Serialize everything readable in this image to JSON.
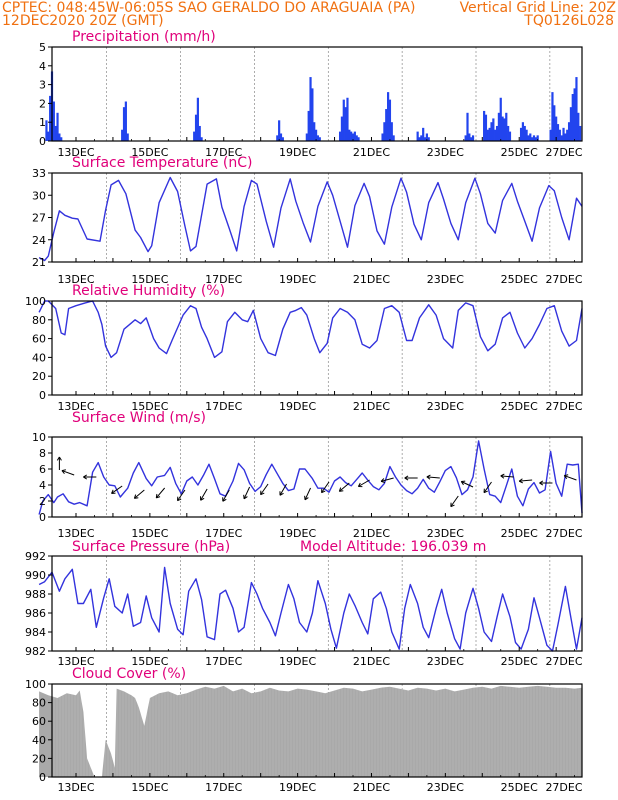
{
  "header": {
    "station_line": "CPTEC:   048:45W-06:05S  SAO GERALDO DO ARAGUAIA (PA)",
    "date_line": "12DEC2020 20Z (GMT)",
    "grid_note": "Vertical Grid Line: 20Z",
    "code": "TQ0126L028"
  },
  "x_tick_labels": [
    "13DEC",
    "15DEC",
    "17DEC",
    "19DEC",
    "21DEC",
    "23DEC",
    "25DEC",
    "27DEC"
  ],
  "colors": {
    "line": "#3333dd",
    "bar": "#2244ee",
    "cloud": "#a9a9a9",
    "title": "#e0007a",
    "header": "#f07010"
  },
  "chart_data": [
    {
      "type": "bar",
      "title": "Precipitation (mm/h)",
      "ylim": [
        0,
        5
      ],
      "yticks": [
        0,
        1,
        2,
        3,
        4,
        5
      ],
      "x_unit": "days since 12DEC2020 00Z",
      "x": [
        0.2,
        0.25,
        0.3,
        0.35,
        0.4,
        0.45,
        0.5,
        0.55,
        0.6,
        2.25,
        2.3,
        2.35,
        2.4,
        4.2,
        4.25,
        4.3,
        4.35,
        4.4,
        6.45,
        6.5,
        6.55,
        6.6,
        7.25,
        7.3,
        7.35,
        7.4,
        7.45,
        7.5,
        7.55,
        7.6,
        8.15,
        8.2,
        8.25,
        8.3,
        8.35,
        8.4,
        8.45,
        8.5,
        8.55,
        8.6,
        8.65,
        9.3,
        9.35,
        9.4,
        9.45,
        9.5,
        9.55,
        9.6,
        10.25,
        10.3,
        10.35,
        10.4,
        10.45,
        10.5,
        10.55,
        11.55,
        11.6,
        11.65,
        11.7,
        11.75,
        12.05,
        12.1,
        12.15,
        12.2,
        12.25,
        12.3,
        12.35,
        12.4,
        12.45,
        12.5,
        12.55,
        12.6,
        12.65,
        12.7,
        12.75,
        13.05,
        13.1,
        13.15,
        13.2,
        13.25,
        13.3,
        13.35,
        13.4,
        13.45,
        13.5,
        13.85,
        13.9,
        13.95,
        14.0,
        14.05,
        14.1,
        14.15,
        14.2,
        14.25,
        14.3,
        14.35,
        14.4,
        14.45,
        14.5,
        14.55,
        14.6,
        14.65
      ],
      "values": [
        1.1,
        0.5,
        2.4,
        3.7,
        2.1,
        0.8,
        1.5,
        0.4,
        0.2,
        0.6,
        1.8,
        2.1,
        0.4,
        0.5,
        1.4,
        2.3,
        0.8,
        0.2,
        0.3,
        1.1,
        0.4,
        0.2,
        0.4,
        1.6,
        3.4,
        2.8,
        1.0,
        0.6,
        0.3,
        0.2,
        0.5,
        1.3,
        2.2,
        1.8,
        2.3,
        0.6,
        0.5,
        0.4,
        0.5,
        0.3,
        0.2,
        0.4,
        1.0,
        1.7,
        2.6,
        2.2,
        1.0,
        0.3,
        0.5,
        0.2,
        0.3,
        0.7,
        0.2,
        0.4,
        0.2,
        0.3,
        1.5,
        0.4,
        0.2,
        0.3,
        1.6,
        1.4,
        0.6,
        0.7,
        1.0,
        1.2,
        0.6,
        0.8,
        1.5,
        2.3,
        1.3,
        1.2,
        1.5,
        0.8,
        0.5,
        0.7,
        1.0,
        0.8,
        0.6,
        0.3,
        0.4,
        0.2,
        0.3,
        0.2,
        0.3,
        0.6,
        2.6,
        1.9,
        1.3,
        0.9,
        0.6,
        0.3,
        0.7,
        0.4,
        0.6,
        1.0,
        1.8,
        2.5,
        2.8,
        3.4,
        1.5,
        0.8
      ]
    },
    {
      "type": "line",
      "title": "Surface Temperature (nC)",
      "ylim": [
        21,
        33
      ],
      "yticks": [
        21,
        24,
        27,
        30,
        33
      ],
      "x_unit": "days since 12DEC2020 00Z",
      "x": [
        0.0,
        0.15,
        0.25,
        0.4,
        0.55,
        0.7,
        0.9,
        1.05,
        1.3,
        1.65,
        1.8,
        1.95,
        2.15,
        2.35,
        2.6,
        2.75,
        2.95,
        3.05,
        3.25,
        3.55,
        3.75,
        3.95,
        4.1,
        4.25,
        4.55,
        4.8,
        4.95,
        5.15,
        5.35,
        5.55,
        5.75,
        5.9,
        6.15,
        6.35,
        6.55,
        6.8,
        6.95,
        7.15,
        7.35,
        7.55,
        7.8,
        7.95,
        8.15,
        8.35,
        8.55,
        8.8,
        8.95,
        9.15,
        9.35,
        9.55,
        9.8,
        9.95,
        10.15,
        10.35,
        10.55,
        10.8,
        10.95,
        11.15,
        11.35,
        11.55,
        11.8,
        11.95,
        12.15,
        12.35,
        12.55,
        12.8,
        12.95,
        13.15,
        13.35,
        13.55,
        13.8,
        13.95,
        14.15,
        14.35,
        14.55,
        14.7
      ],
      "values": [
        21.6,
        21.2,
        21.8,
        25.0,
        27.9,
        27.3,
        26.9,
        26.8,
        24.1,
        23.8,
        28.0,
        31.4,
        32.0,
        30.2,
        25.3,
        24.3,
        22.4,
        23.2,
        29.0,
        32.4,
        30.5,
        25.8,
        22.5,
        23.1,
        31.5,
        32.2,
        28.4,
        25.5,
        22.5,
        28.5,
        32.0,
        31.5,
        26.5,
        23.0,
        28.3,
        32.2,
        29.2,
        26.3,
        23.7,
        28.5,
        31.8,
        30.0,
        26.5,
        23.0,
        28.6,
        31.6,
        29.8,
        25.2,
        23.4,
        28.4,
        32.3,
        30.4,
        26.1,
        24.0,
        29.0,
        31.7,
        29.5,
        26.2,
        24.0,
        29.0,
        32.3,
        30.2,
        26.2,
        24.9,
        29.3,
        31.6,
        29.2,
        26.5,
        23.8,
        28.3,
        31.3,
        30.6,
        27.0,
        24.0,
        29.6,
        28.5
      ]
    },
    {
      "type": "line",
      "title": "Relative Humidity (%)",
      "ylim": [
        0,
        100
      ],
      "yticks": [
        0,
        20,
        40,
        60,
        80,
        100
      ],
      "x_unit": "days since 12DEC2020 00Z",
      "x": [
        0.0,
        0.15,
        0.25,
        0.45,
        0.6,
        0.7,
        0.8,
        1.0,
        1.25,
        1.45,
        1.6,
        1.7,
        1.8,
        1.95,
        2.1,
        2.3,
        2.6,
        2.75,
        2.9,
        3.1,
        3.25,
        3.45,
        3.6,
        3.9,
        4.1,
        4.25,
        4.4,
        4.55,
        4.75,
        4.95,
        5.1,
        5.3,
        5.5,
        5.65,
        5.8,
        6.0,
        6.2,
        6.4,
        6.6,
        6.8,
        6.95,
        7.1,
        7.25,
        7.45,
        7.6,
        7.8,
        7.95,
        8.15,
        8.35,
        8.55,
        8.75,
        8.95,
        9.15,
        9.35,
        9.55,
        9.75,
        9.95,
        10.1,
        10.3,
        10.55,
        10.75,
        10.95,
        11.2,
        11.35,
        11.55,
        11.75,
        11.95,
        12.15,
        12.35,
        12.55,
        12.75,
        12.95,
        13.15,
        13.35,
        13.55,
        13.75,
        13.95,
        14.15,
        14.35,
        14.55,
        14.7
      ],
      "values": [
        88,
        100,
        100,
        92,
        66,
        64,
        92,
        95,
        98,
        100,
        88,
        75,
        52,
        40,
        45,
        70,
        80,
        76,
        82,
        60,
        50,
        44,
        58,
        85,
        95,
        92,
        72,
        60,
        40,
        46,
        78,
        88,
        80,
        78,
        90,
        60,
        45,
        42,
        70,
        88,
        90,
        93,
        85,
        60,
        45,
        55,
        82,
        92,
        88,
        80,
        54,
        50,
        58,
        92,
        95,
        88,
        58,
        58,
        82,
        96,
        85,
        60,
        50,
        90,
        98,
        95,
        62,
        47,
        54,
        82,
        88,
        66,
        50,
        60,
        75,
        92,
        95,
        68,
        52,
        58,
        92
      ]
    },
    {
      "type": "line",
      "title": "Surface Wind (m/s)",
      "ylim": [
        0,
        10
      ],
      "yticks": [
        0,
        2,
        4,
        6,
        8,
        10
      ],
      "x_unit": "days since 12DEC2020 00Z",
      "x": [
        0.0,
        0.1,
        0.25,
        0.4,
        0.5,
        0.65,
        0.8,
        0.95,
        1.1,
        1.3,
        1.45,
        1.6,
        1.75,
        1.9,
        2.05,
        2.2,
        2.4,
        2.55,
        2.7,
        2.9,
        3.05,
        3.2,
        3.4,
        3.55,
        3.7,
        3.85,
        4.0,
        4.15,
        4.3,
        4.45,
        4.6,
        4.75,
        4.9,
        5.05,
        5.25,
        5.4,
        5.55,
        5.7,
        5.85,
        6.0,
        6.15,
        6.3,
        6.45,
        6.6,
        6.75,
        6.9,
        7.05,
        7.2,
        7.4,
        7.55,
        7.7,
        7.85,
        8.0,
        8.15,
        8.3,
        8.45,
        8.6,
        8.75,
        8.9,
        9.05,
        9.2,
        9.35,
        9.5,
        9.65,
        9.8,
        9.95,
        10.1,
        10.25,
        10.4,
        10.55,
        10.7,
        10.85,
        11.0,
        11.15,
        11.3,
        11.45,
        11.6,
        11.75,
        11.9,
        12.05,
        12.2,
        12.35,
        12.5,
        12.65,
        12.8,
        12.95,
        13.1,
        13.25,
        13.4,
        13.55,
        13.7,
        13.85,
        14.0,
        14.15,
        14.3,
        14.45,
        14.6,
        14.7
      ],
      "values": [
        0.3,
        2.0,
        2.8,
        1.8,
        2.5,
        2.9,
        1.9,
        1.6,
        1.8,
        1.4,
        5.6,
        6.8,
        5.0,
        4.0,
        3.9,
        2.5,
        3.6,
        5.5,
        6.8,
        4.8,
        3.9,
        5.0,
        5.2,
        6.2,
        4.2,
        2.9,
        4.5,
        5.0,
        4.0,
        5.2,
        6.6,
        4.8,
        2.9,
        2.6,
        4.5,
        6.7,
        5.9,
        4.2,
        3.2,
        3.8,
        5.3,
        6.6,
        5.4,
        4.2,
        3.3,
        3.5,
        6.0,
        6.0,
        4.8,
        3.6,
        3.6,
        3.1,
        4.5,
        5.0,
        4.3,
        3.9,
        4.7,
        5.5,
        4.6,
        3.8,
        3.4,
        4.2,
        6.3,
        5.0,
        4.0,
        3.3,
        2.9,
        3.6,
        4.7,
        3.6,
        3.1,
        4.4,
        5.8,
        6.3,
        4.9,
        2.8,
        3.4,
        5.0,
        9.5,
        6.0,
        2.8,
        2.6,
        1.8,
        3.9,
        6.0,
        2.6,
        1.4,
        3.5,
        4.3,
        3.0,
        3.4,
        8.2,
        4.2,
        2.6,
        6.6,
        6.5,
        6.6,
        0.5
      ]
    },
    {
      "type": "line",
      "title": "Surface Pressure (hPa)",
      "annotation": "Model Altitude: 196.039 m",
      "ylim": [
        982,
        992
      ],
      "yticks": [
        982,
        984,
        986,
        988,
        990,
        992
      ],
      "x_unit": "days since 12DEC2020 00Z",
      "x": [
        0.0,
        0.15,
        0.35,
        0.55,
        0.7,
        0.9,
        1.05,
        1.2,
        1.4,
        1.55,
        1.75,
        1.9,
        2.05,
        2.25,
        2.4,
        2.55,
        2.75,
        2.9,
        3.05,
        3.25,
        3.4,
        3.55,
        3.75,
        3.9,
        4.05,
        4.25,
        4.4,
        4.55,
        4.75,
        4.9,
        5.05,
        5.25,
        5.4,
        5.55,
        5.75,
        5.9,
        6.05,
        6.25,
        6.4,
        6.55,
        6.75,
        6.9,
        7.05,
        7.25,
        7.4,
        7.55,
        7.75,
        7.9,
        8.05,
        8.25,
        8.4,
        8.55,
        8.75,
        8.9,
        9.05,
        9.25,
        9.4,
        9.55,
        9.75,
        9.9,
        10.05,
        10.25,
        10.4,
        10.55,
        10.75,
        10.9,
        11.05,
        11.25,
        11.4,
        11.55,
        11.75,
        11.9,
        12.05,
        12.25,
        12.4,
        12.55,
        12.75,
        12.9,
        13.05,
        13.25,
        13.4,
        13.55,
        13.75,
        13.9,
        14.05,
        14.25,
        14.4,
        14.55,
        14.7
      ],
      "values": [
        989.0,
        989.3,
        990.3,
        988.3,
        989.6,
        990.6,
        987.0,
        987.0,
        988.5,
        984.5,
        987.6,
        989.6,
        986.7,
        986.0,
        988.0,
        984.6,
        985.0,
        987.8,
        985.5,
        984.0,
        990.8,
        987.0,
        984.3,
        983.7,
        988.3,
        989.6,
        987.4,
        983.5,
        983.2,
        988.0,
        988.4,
        986.5,
        984.0,
        984.5,
        989.2,
        988.0,
        986.5,
        985.0,
        983.6,
        986.0,
        989.0,
        987.5,
        985.0,
        984.0,
        986.0,
        989.4,
        987.0,
        984.3,
        982.3,
        986.0,
        988.0,
        986.8,
        985.0,
        983.8,
        987.5,
        988.2,
        986.5,
        984.0,
        982.2,
        986.5,
        989.0,
        987.0,
        984.5,
        983.4,
        986.5,
        988.5,
        986.0,
        983.3,
        982.2,
        986.0,
        988.6,
        986.5,
        984.0,
        983.0,
        985.6,
        988.0,
        985.6,
        982.9,
        982.2,
        984.3,
        987.6,
        985.5,
        982.6,
        982.0,
        984.8,
        988.8,
        985.5,
        982.2,
        985.5
      ]
    },
    {
      "type": "area",
      "title": "Cloud Cover (%)",
      "ylim": [
        0,
        100
      ],
      "yticks": [
        0,
        20,
        40,
        60,
        80,
        100
      ],
      "x_unit": "days since 12DEC2020 00Z",
      "x": [
        0.0,
        0.25,
        0.5,
        0.75,
        1.0,
        1.1,
        1.2,
        1.3,
        1.5,
        1.7,
        1.8,
        1.95,
        2.05,
        2.1,
        2.3,
        2.5,
        2.6,
        2.7,
        2.85,
        3.0,
        3.25,
        3.5,
        3.75,
        4.0,
        4.25,
        4.5,
        4.75,
        5.0,
        5.25,
        5.5,
        5.75,
        6.0,
        6.25,
        6.5,
        6.75,
        7.0,
        7.25,
        7.5,
        7.75,
        8.0,
        8.25,
        8.5,
        8.75,
        9.0,
        9.25,
        9.5,
        9.75,
        10.0,
        10.25,
        10.5,
        10.75,
        11.0,
        11.25,
        11.5,
        11.75,
        12.0,
        12.25,
        12.5,
        12.75,
        13.0,
        13.25,
        13.5,
        13.75,
        14.0,
        14.25,
        14.5,
        14.7
      ],
      "values": [
        92,
        88,
        85,
        90,
        88,
        93,
        70,
        20,
        0,
        0,
        40,
        25,
        10,
        95,
        92,
        88,
        85,
        75,
        55,
        85,
        90,
        92,
        88,
        90,
        94,
        97,
        95,
        98,
        92,
        95,
        90,
        92,
        96,
        93,
        92,
        95,
        94,
        92,
        90,
        93,
        96,
        95,
        92,
        94,
        96,
        97,
        95,
        93,
        96,
        95,
        93,
        95,
        92,
        94,
        96,
        97,
        95,
        98,
        97,
        96,
        97,
        98,
        97,
        96,
        96,
        95,
        96
      ]
    }
  ]
}
